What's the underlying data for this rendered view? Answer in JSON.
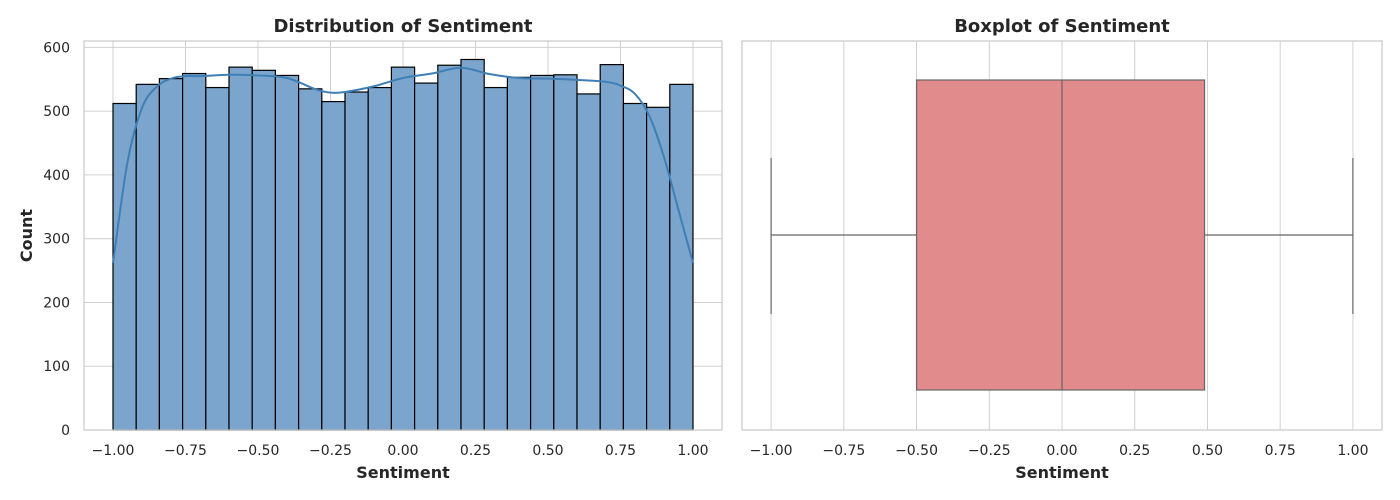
{
  "colors": {
    "hist_fill": "#7ba5cc",
    "hist_edge": "#000000",
    "kde_line": "#3f7fb6",
    "box_fill": "#e18b8c",
    "box_line": "#666666",
    "grid": "#d0d0d0",
    "spine": "#c8c8c8"
  },
  "chart_data": [
    {
      "type": "bar",
      "subtype": "histogram-with-kde",
      "title": "Distribution of Sentiment",
      "xlabel": "Sentiment",
      "ylabel": "Count",
      "xlim": [
        -1.1,
        1.1
      ],
      "ylim": [
        0,
        610
      ],
      "grid": true,
      "bin_edges": [
        -1.0,
        -0.92,
        -0.84,
        -0.76,
        -0.68,
        -0.6,
        -0.52,
        -0.44,
        -0.36,
        -0.28,
        -0.2,
        -0.12,
        -0.04,
        0.04,
        0.12,
        0.2,
        0.28,
        0.36,
        0.44,
        0.52,
        0.6,
        0.68,
        0.76,
        0.84,
        0.92,
        1.0
      ],
      "values": [
        512,
        542,
        551,
        559,
        537,
        569,
        564,
        556,
        535,
        515,
        530,
        537,
        569,
        544,
        572,
        581,
        537,
        553,
        556,
        557,
        527,
        573,
        512,
        506,
        542
      ],
      "kde": {
        "x": [
          -1.0,
          -0.95,
          -0.9,
          -0.85,
          -0.8,
          -0.75,
          -0.7,
          -0.6,
          -0.5,
          -0.4,
          -0.3,
          -0.25,
          -0.2,
          -0.1,
          0.0,
          0.1,
          0.2,
          0.3,
          0.4,
          0.5,
          0.6,
          0.7,
          0.75,
          0.8,
          0.85,
          0.9,
          0.95,
          1.0
        ],
        "y": [
          262,
          420,
          505,
          538,
          551,
          555,
          555,
          557,
          556,
          552,
          534,
          529,
          530,
          539,
          552,
          559,
          568,
          558,
          552,
          551,
          549,
          546,
          540,
          527,
          492,
          428,
          345,
          262
        ]
      },
      "xticks": [
        -1.0,
        -0.75,
        -0.5,
        -0.25,
        0.0,
        0.25,
        0.5,
        0.75,
        1.0
      ],
      "xtick_labels": [
        "−1.00",
        "−0.75",
        "−0.50",
        "−0.25",
        "0.00",
        "0.25",
        "0.50",
        "0.75",
        "1.00"
      ],
      "yticks": [
        0,
        100,
        200,
        300,
        400,
        500,
        600
      ],
      "ytick_labels": [
        "0",
        "100",
        "200",
        "300",
        "400",
        "500",
        "600"
      ]
    },
    {
      "type": "box",
      "title": "Boxplot of Sentiment",
      "xlabel": "Sentiment",
      "xlim": [
        -1.1,
        1.1
      ],
      "grid": true,
      "min": -1.0,
      "q1": -0.5,
      "median": 0.0,
      "q3": 0.49,
      "max": 1.0,
      "xticks": [
        -1.0,
        -0.75,
        -0.5,
        -0.25,
        0.0,
        0.25,
        0.5,
        0.75,
        1.0
      ],
      "xtick_labels": [
        "−1.00",
        "−0.75",
        "−0.50",
        "−0.25",
        "0.00",
        "0.25",
        "0.50",
        "0.75",
        "1.00"
      ]
    }
  ]
}
